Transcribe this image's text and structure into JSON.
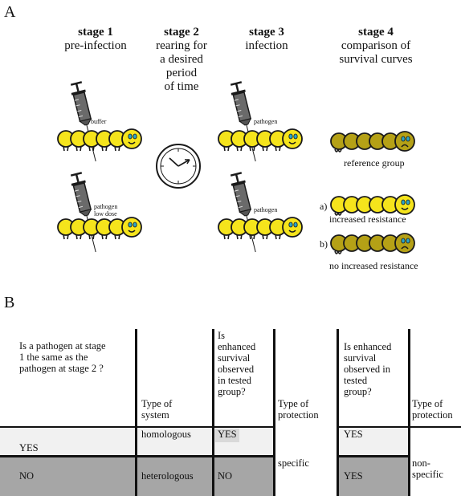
{
  "panel_a": {
    "label": "A",
    "stages": [
      {
        "title": "stage 1",
        "desc": [
          "pre-infection"
        ]
      },
      {
        "title": "stage 2",
        "desc": [
          "rearing for",
          "a desired",
          "period",
          "of time"
        ]
      },
      {
        "title": "stage 3",
        "desc": [
          "infection"
        ]
      },
      {
        "title": "stage 4",
        "desc": [
          "comparison of",
          "survival curves"
        ]
      }
    ],
    "syringe_labels": {
      "top_left": "buffer",
      "bottom_left": [
        "pathogen",
        "low dose"
      ],
      "top_mid": "pathogen",
      "bottom_mid": "pathogen"
    },
    "reference_label": "reference group",
    "outcomes": [
      {
        "marker": "a)",
        "label": "increased resistance"
      },
      {
        "marker": "b)",
        "label": "no increased resistance"
      }
    ],
    "colors": {
      "larva_yellow": "#f5e41c",
      "larva_olive": "#b5a116",
      "stroke": "#1a1a1a"
    }
  },
  "panel_b": {
    "label": "B",
    "headers": {
      "question": [
        "Is a pathogen at stage",
        "1 the same as the",
        "pathogen at stage 2  ?"
      ],
      "type_system": [
        "Type of",
        "system"
      ],
      "enhanced1": [
        "Is",
        "enhanced",
        "survival",
        "observed",
        "in tested",
        "group?"
      ],
      "type_protection1": [
        "Type of",
        "protection"
      ],
      "enhanced2": [
        "Is enhanced",
        "survival",
        "observed in",
        "tested",
        "group?"
      ],
      "type_protection2": [
        "Type of",
        "protection"
      ]
    },
    "rows": [
      {
        "answer": "YES",
        "system": "homologous",
        "enh1": "YES",
        "enh2": "YES"
      },
      {
        "answer": "NO",
        "system": "heterologous",
        "enh1": "NO",
        "enh2": "YES"
      }
    ],
    "protection1": "specific",
    "protection2": [
      "non-",
      "specific"
    ],
    "colors": {
      "row_light": "#f1f1f1",
      "row_dark": "#a6a6a6",
      "cell_highlight": "#d9d9d9"
    }
  }
}
